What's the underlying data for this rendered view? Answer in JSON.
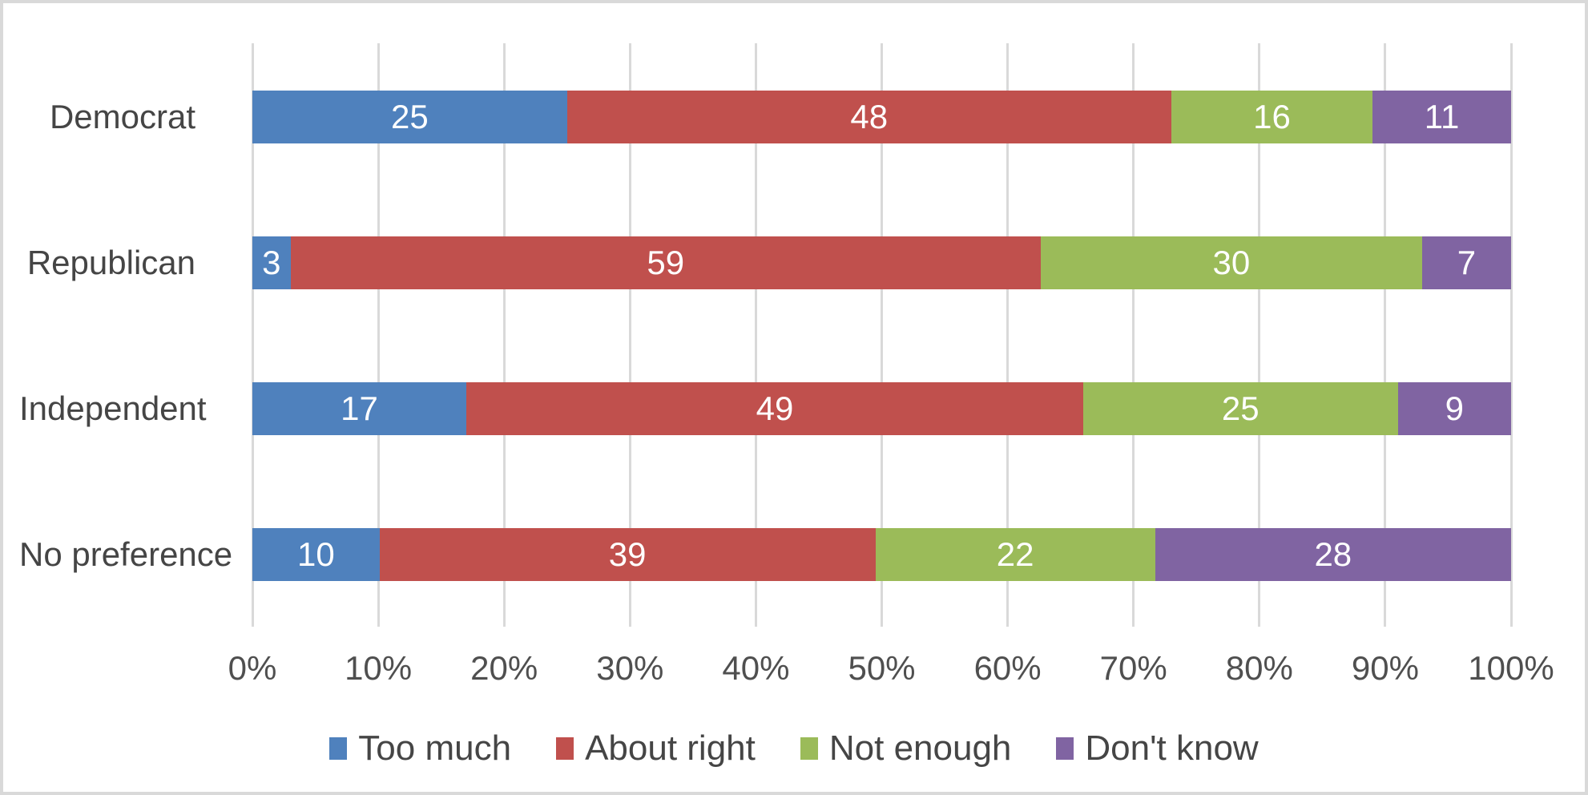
{
  "chart_data": {
    "type": "bar",
    "orientation": "horizontal",
    "stacked": true,
    "normalized_to_100": true,
    "title": "",
    "xlabel": "",
    "ylabel": "",
    "grid": true,
    "categories": [
      "Democrat",
      "Republican",
      "Independent",
      "No preference"
    ],
    "series": [
      {
        "name": "Too much",
        "color": "#4F81BD",
        "values": [
          25,
          3,
          17,
          10
        ]
      },
      {
        "name": "About right",
        "color": "#C0504D",
        "values": [
          48,
          59,
          49,
          39
        ]
      },
      {
        "name": "Not enough",
        "color": "#9BBB59",
        "values": [
          16,
          30,
          25,
          22
        ]
      },
      {
        "name": "Don't know",
        "color": "#8064A2",
        "values": [
          11,
          7,
          9,
          28
        ]
      }
    ],
    "x_axis": {
      "min": 0,
      "max": 100,
      "ticks": [
        "0%",
        "10%",
        "20%",
        "30%",
        "40%",
        "50%",
        "60%",
        "70%",
        "80%",
        "90%",
        "100%"
      ]
    },
    "legend": {
      "position": "bottom",
      "entries": [
        "Too much",
        "About right",
        "Not enough",
        "Don't know"
      ]
    },
    "colors": {
      "gridline": "#D9D9D9",
      "frame": "#D9D9D9",
      "text": "#454545",
      "bar_label": "#FFFFFF"
    }
  }
}
